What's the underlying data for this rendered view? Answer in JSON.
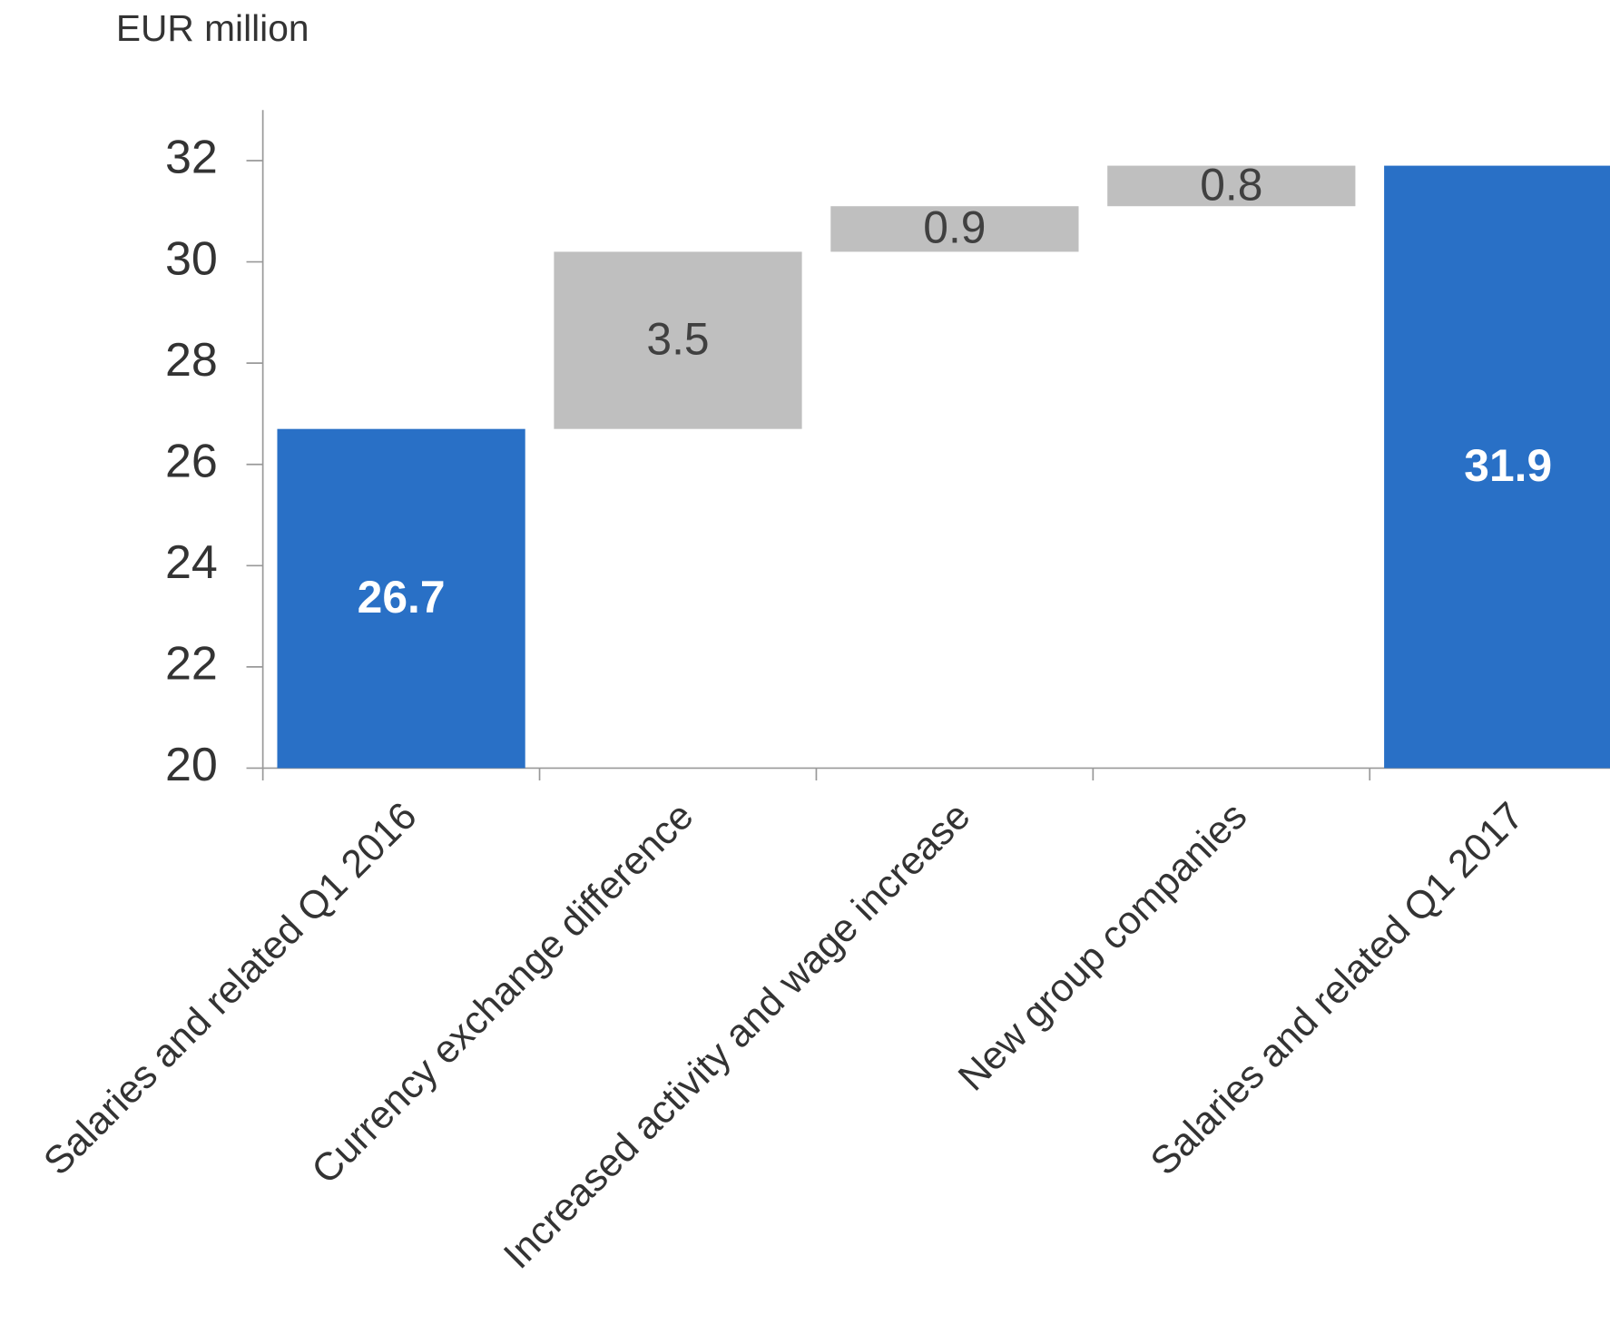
{
  "chart_data": {
    "type": "waterfall",
    "y_label": "EUR million",
    "categories": [
      "Salaries and related Q1 2016",
      "Currency exchange difference",
      "Increased activity and wage increase",
      "New group companies",
      "Salaries and related Q1 2017"
    ],
    "values": [
      26.7,
      3.5,
      0.9,
      0.8,
      31.9
    ],
    "totals": [
      true,
      false,
      false,
      false,
      true
    ],
    "total_color": "#2970c6",
    "change_color": "#bfbfbf",
    "ylim": [
      20,
      33
    ],
    "yticks": [
      20,
      22,
      24,
      26,
      28,
      30,
      32
    ],
    "grid": false
  }
}
